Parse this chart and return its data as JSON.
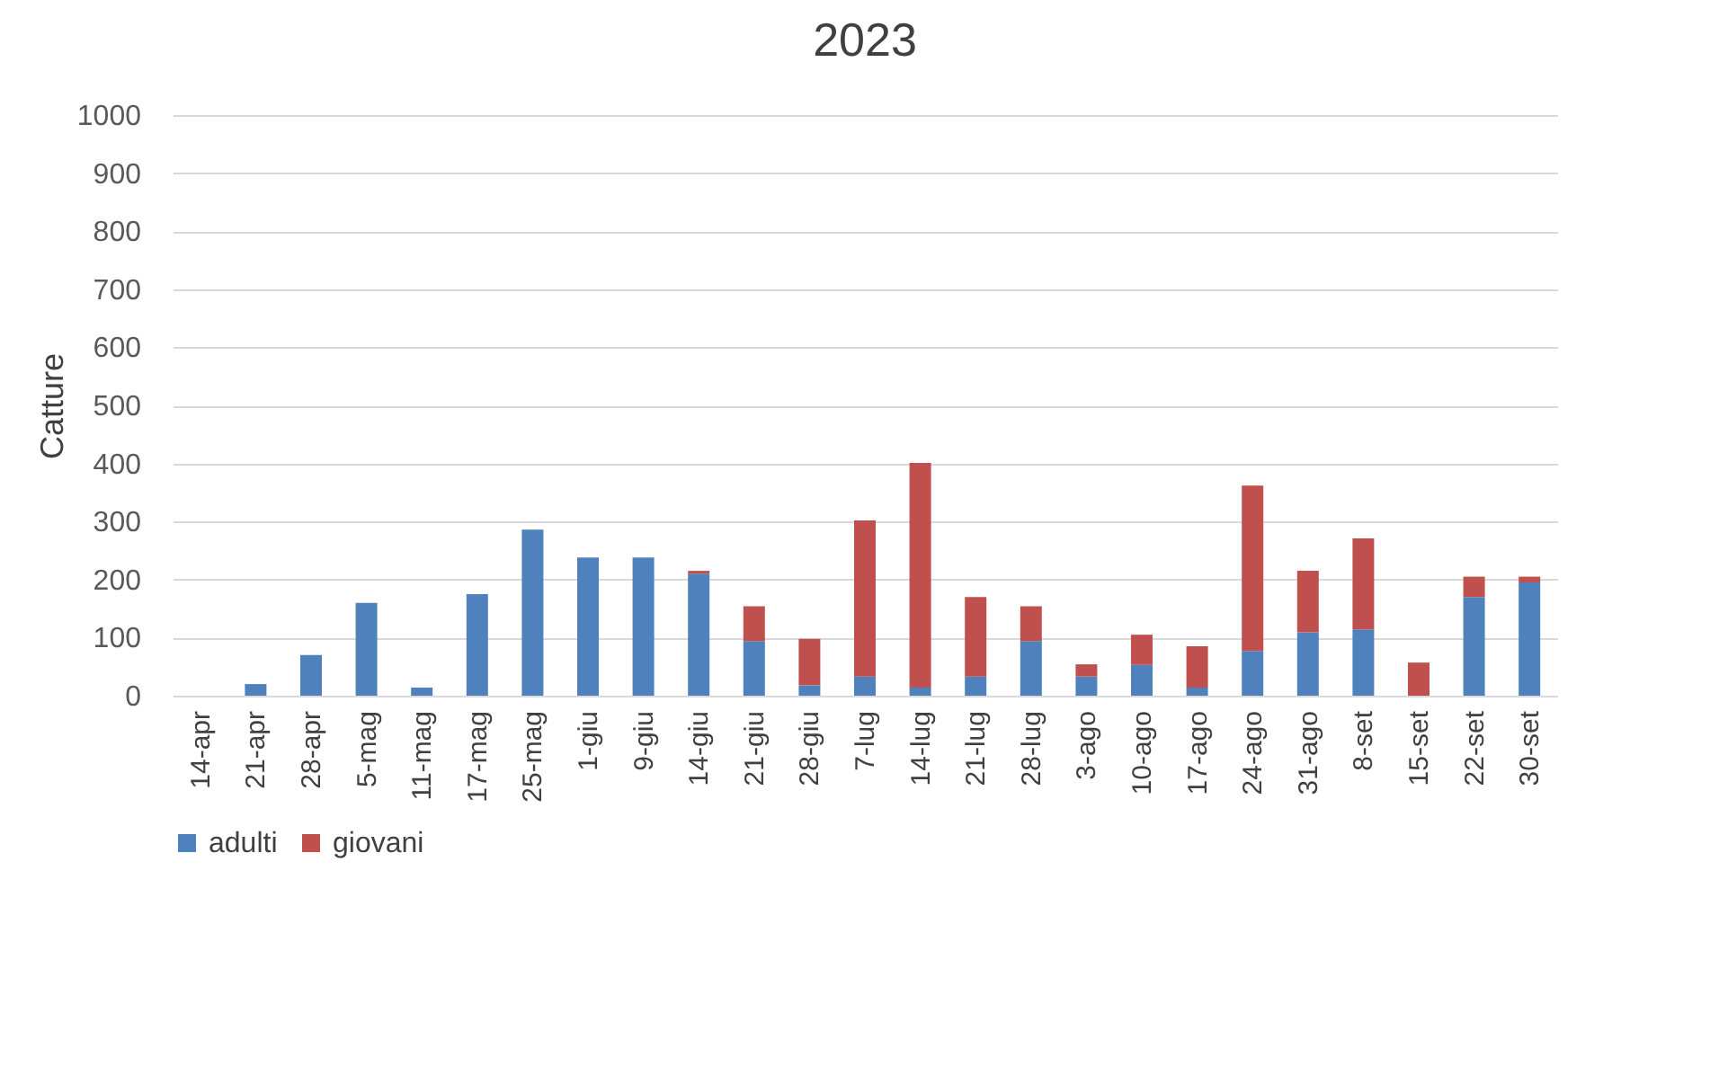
{
  "chart_data": {
    "type": "bar",
    "title": "2023",
    "ylabel": "Catture",
    "stacked": true,
    "grid": "y",
    "legend": "bottom",
    "categories": [
      "14-apr",
      "21-apr",
      "28-apr",
      "5-mag",
      "11-mag",
      "17-mag",
      "25-mag",
      "1-giu",
      "9-giu",
      "14-giu",
      "21-giu",
      "28-giu",
      "7-lug",
      "14-lug",
      "21-lug",
      "28-lug",
      "3-ago",
      "10-ago",
      "17-ago",
      "24-ago",
      "31-ago",
      "8-set",
      "15-set",
      "22-set",
      "30-set"
    ],
    "series": [
      {
        "name": "adulti",
        "color": "#4f81bd",
        "values": [
          0,
          20,
          70,
          160,
          14,
          175,
          286,
          238,
          238,
          210,
          94,
          18,
          33,
          14,
          33,
          94,
          33,
          53,
          14,
          77,
          109,
          114,
          0,
          170,
          195
        ]
      },
      {
        "name": "giovani",
        "color": "#c0504d",
        "values": [
          0,
          0,
          0,
          0,
          0,
          0,
          0,
          0,
          0,
          5,
          60,
          80,
          269,
          387,
          137,
          60,
          21,
          52,
          71,
          285,
          106,
          157,
          57,
          35,
          10
        ]
      }
    ],
    "ylim": [
      0,
      1000
    ],
    "yticks": [
      0,
      100,
      200,
      300,
      400,
      500,
      600,
      700,
      800,
      900,
      1000
    ]
  }
}
